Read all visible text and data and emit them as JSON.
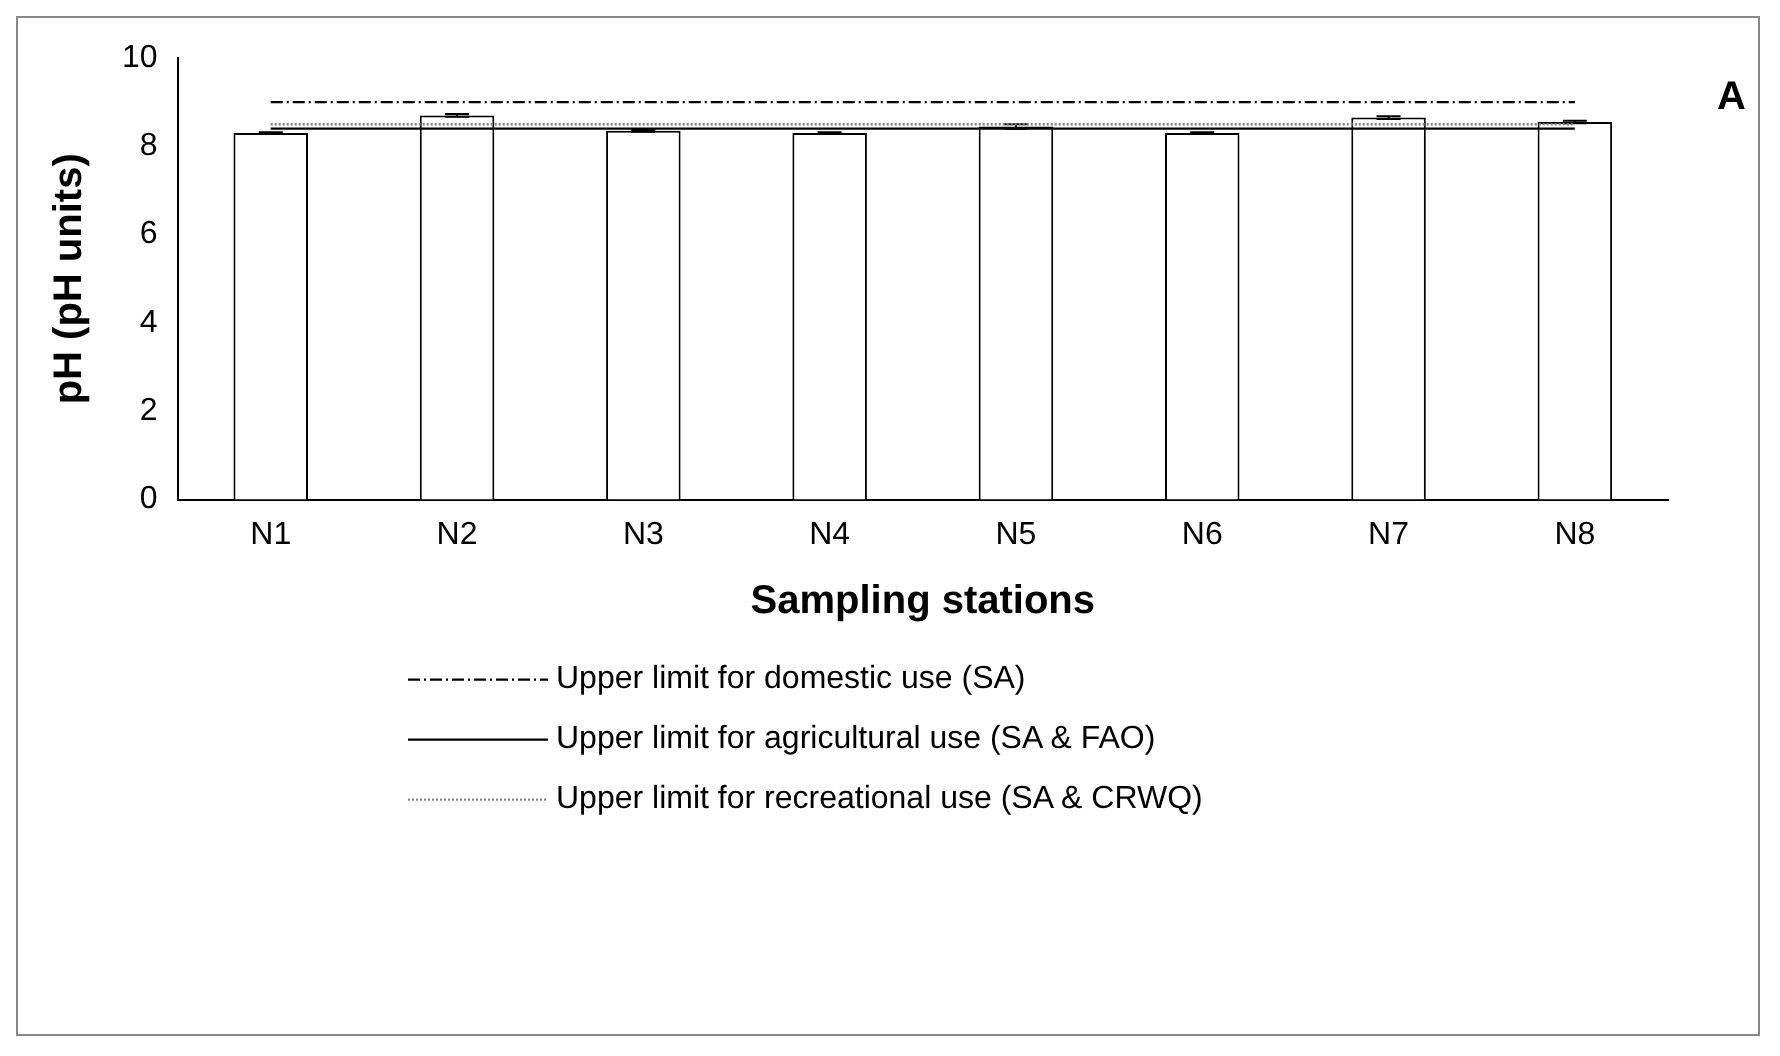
{
  "chart_data": {
    "type": "bar",
    "ylabel": "pH (pH units)",
    "xlabel": "Sampling stations",
    "categories": [
      "N1",
      "N2",
      "N3",
      "N4",
      "N5",
      "N6",
      "N7",
      "N8"
    ],
    "values": [
      8.3,
      8.7,
      8.35,
      8.3,
      8.45,
      8.3,
      8.65,
      8.55
    ],
    "errors": [
      0.02,
      0.03,
      0.02,
      0.02,
      0.05,
      0.02,
      0.03,
      0.03
    ],
    "color": "#ffffff",
    "ylim": [
      0,
      10
    ],
    "yticks": [
      0,
      2,
      4,
      6,
      8,
      10
    ],
    "grid": false,
    "legend": "bottom",
    "ref_lines": [
      {
        "axis": "y",
        "value": 9.0,
        "label": "Upper limit for domestic use (SA)",
        "color": "#000000",
        "line_style": "dashdot"
      },
      {
        "axis": "y",
        "value": 8.4,
        "label": "Upper limit for agricultural use (SA & FAO)",
        "color": "#000000",
        "line_style": "solid"
      },
      {
        "axis": "y",
        "value": 8.5,
        "label": "Upper limit for recreational use (SA & CRWQ)",
        "color": "#808080",
        "line_style": "dotted"
      }
    ],
    "annotations": [
      "A"
    ]
  }
}
